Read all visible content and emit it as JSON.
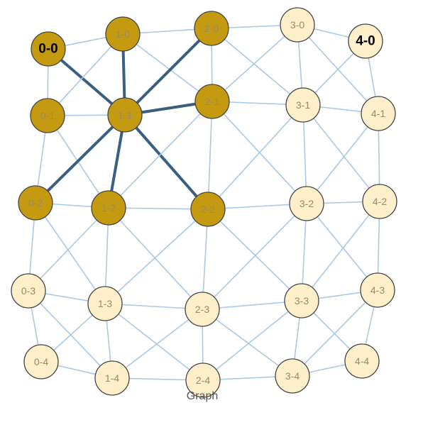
{
  "diagram": {
    "caption": "Graph",
    "colors": {
      "edge": "#a7c9e6",
      "edge_highlight": "#3a5f80",
      "node_selected": "#c49a10",
      "node_default": "#fdefc9",
      "node_stroke": "#444444"
    },
    "nodes": [
      {
        "id": "0-0",
        "label": "0-0",
        "state": "selected",
        "emphasis": "bold"
      },
      {
        "id": "1-0",
        "label": "1-0",
        "state": "selected"
      },
      {
        "id": "2-0",
        "label": "2-0",
        "state": "selected"
      },
      {
        "id": "3-0",
        "label": "3-0",
        "state": "default"
      },
      {
        "id": "4-0",
        "label": "4-0",
        "state": "default",
        "emphasis": "bold"
      },
      {
        "id": "0-1",
        "label": "0-1",
        "state": "selected"
      },
      {
        "id": "1-1",
        "label": "1-1",
        "state": "selected"
      },
      {
        "id": "2-1",
        "label": "2-1",
        "state": "selected"
      },
      {
        "id": "3-1",
        "label": "3-1",
        "state": "default"
      },
      {
        "id": "4-1",
        "label": "4-1",
        "state": "default"
      },
      {
        "id": "0-2",
        "label": "0-2",
        "state": "selected"
      },
      {
        "id": "1-2",
        "label": "1-2",
        "state": "selected"
      },
      {
        "id": "2-2",
        "label": "2-2",
        "state": "selected"
      },
      {
        "id": "3-2",
        "label": "3-2",
        "state": "default"
      },
      {
        "id": "4-2",
        "label": "4-2",
        "state": "default"
      },
      {
        "id": "0-3",
        "label": "0-3",
        "state": "default"
      },
      {
        "id": "1-3",
        "label": "1-3",
        "state": "default"
      },
      {
        "id": "2-3",
        "label": "2-3",
        "state": "default"
      },
      {
        "id": "3-3",
        "label": "3-3",
        "state": "default"
      },
      {
        "id": "4-3",
        "label": "4-3",
        "state": "default"
      },
      {
        "id": "0-4",
        "label": "0-4",
        "state": "default"
      },
      {
        "id": "1-4",
        "label": "1-4",
        "state": "default"
      },
      {
        "id": "2-4",
        "label": "2-4",
        "state": "default"
      },
      {
        "id": "3-4",
        "label": "3-4",
        "state": "default"
      },
      {
        "id": "4-4",
        "label": "4-4",
        "state": "default"
      }
    ],
    "edges": [
      [
        "0-0",
        "1-0",
        false
      ],
      [
        "1-0",
        "2-0",
        false
      ],
      [
        "2-0",
        "3-0",
        false
      ],
      [
        "3-0",
        "4-0",
        false
      ],
      [
        "0-1",
        "1-1",
        false
      ],
      [
        "1-1",
        "2-1",
        true
      ],
      [
        "2-1",
        "3-1",
        false
      ],
      [
        "3-1",
        "4-1",
        false
      ],
      [
        "0-2",
        "1-2",
        false
      ],
      [
        "1-2",
        "2-2",
        false
      ],
      [
        "2-2",
        "3-2",
        false
      ],
      [
        "3-2",
        "4-2",
        false
      ],
      [
        "0-3",
        "1-3",
        false
      ],
      [
        "1-3",
        "2-3",
        false
      ],
      [
        "2-3",
        "3-3",
        false
      ],
      [
        "3-3",
        "4-3",
        false
      ],
      [
        "0-4",
        "1-4",
        false
      ],
      [
        "1-4",
        "2-4",
        false
      ],
      [
        "2-4",
        "3-4",
        false
      ],
      [
        "3-4",
        "4-4",
        false
      ],
      [
        "0-0",
        "0-1",
        false
      ],
      [
        "0-1",
        "0-2",
        false
      ],
      [
        "0-2",
        "0-3",
        false
      ],
      [
        "0-3",
        "0-4",
        false
      ],
      [
        "1-0",
        "1-1",
        true
      ],
      [
        "1-1",
        "1-2",
        true
      ],
      [
        "1-2",
        "1-3",
        false
      ],
      [
        "1-3",
        "1-4",
        false
      ],
      [
        "2-0",
        "2-1",
        false
      ],
      [
        "2-1",
        "2-2",
        false
      ],
      [
        "2-2",
        "2-3",
        false
      ],
      [
        "2-3",
        "2-4",
        false
      ],
      [
        "3-0",
        "3-1",
        false
      ],
      [
        "3-1",
        "3-2",
        false
      ],
      [
        "3-2",
        "3-3",
        false
      ],
      [
        "3-3",
        "3-4",
        false
      ],
      [
        "4-0",
        "4-1",
        false
      ],
      [
        "4-1",
        "4-2",
        false
      ],
      [
        "4-2",
        "4-3",
        false
      ],
      [
        "4-3",
        "4-4",
        false
      ],
      [
        "0-0",
        "1-1",
        true
      ],
      [
        "1-0",
        "0-1",
        false
      ],
      [
        "1-0",
        "2-1",
        false
      ],
      [
        "2-0",
        "1-1",
        true
      ],
      [
        "2-0",
        "3-1",
        false
      ],
      [
        "3-0",
        "2-1",
        false
      ],
      [
        "3-0",
        "4-1",
        false
      ],
      [
        "4-0",
        "3-1",
        false
      ],
      [
        "0-1",
        "1-2",
        false
      ],
      [
        "1-1",
        "0-2",
        true
      ],
      [
        "1-1",
        "2-2",
        true
      ],
      [
        "2-1",
        "1-2",
        false
      ],
      [
        "2-1",
        "3-2",
        false
      ],
      [
        "3-1",
        "2-2",
        false
      ],
      [
        "3-1",
        "4-2",
        false
      ],
      [
        "4-1",
        "3-2",
        false
      ],
      [
        "0-2",
        "1-3",
        false
      ],
      [
        "1-2",
        "0-3",
        false
      ],
      [
        "1-2",
        "2-3",
        false
      ],
      [
        "2-2",
        "1-3",
        false
      ],
      [
        "2-2",
        "3-3",
        false
      ],
      [
        "3-2",
        "2-3",
        false
      ],
      [
        "3-2",
        "4-3",
        false
      ],
      [
        "4-2",
        "3-3",
        false
      ],
      [
        "0-3",
        "1-4",
        false
      ],
      [
        "1-3",
        "0-4",
        false
      ],
      [
        "1-3",
        "2-4",
        false
      ],
      [
        "2-3",
        "1-4",
        false
      ],
      [
        "2-3",
        "3-4",
        false
      ],
      [
        "3-3",
        "2-4",
        false
      ],
      [
        "3-3",
        "4-4",
        false
      ],
      [
        "4-3",
        "3-4",
        false
      ]
    ]
  }
}
